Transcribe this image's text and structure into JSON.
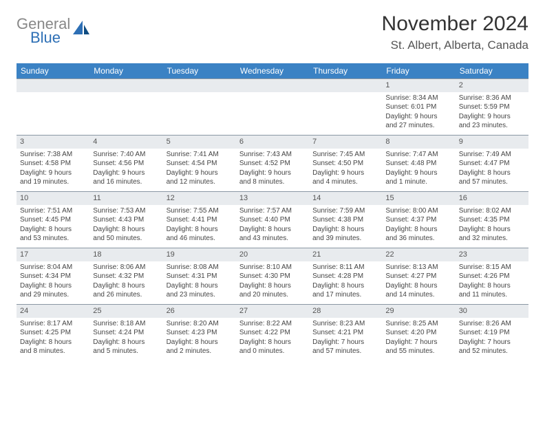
{
  "logo": {
    "text_gray": "General",
    "text_blue": "Blue"
  },
  "title": "November 2024",
  "location": "St. Albert, Alberta, Canada",
  "day_headers": [
    "Sunday",
    "Monday",
    "Tuesday",
    "Wednesday",
    "Thursday",
    "Friday",
    "Saturday"
  ],
  "colors": {
    "header_bg": "#3b82c4",
    "header_fg": "#ffffff",
    "daynum_bg": "#e8ebee",
    "border": "#8a97a3",
    "text": "#444444",
    "logo_gray": "#888888",
    "logo_blue": "#2d6fb5"
  },
  "weeks": [
    [
      {
        "blank": true
      },
      {
        "blank": true
      },
      {
        "blank": true
      },
      {
        "blank": true
      },
      {
        "blank": true
      },
      {
        "day": "1",
        "sunrise": "Sunrise: 8:34 AM",
        "sunset": "Sunset: 6:01 PM",
        "daylight1": "Daylight: 9 hours",
        "daylight2": "and 27 minutes."
      },
      {
        "day": "2",
        "sunrise": "Sunrise: 8:36 AM",
        "sunset": "Sunset: 5:59 PM",
        "daylight1": "Daylight: 9 hours",
        "daylight2": "and 23 minutes."
      }
    ],
    [
      {
        "day": "3",
        "sunrise": "Sunrise: 7:38 AM",
        "sunset": "Sunset: 4:58 PM",
        "daylight1": "Daylight: 9 hours",
        "daylight2": "and 19 minutes."
      },
      {
        "day": "4",
        "sunrise": "Sunrise: 7:40 AM",
        "sunset": "Sunset: 4:56 PM",
        "daylight1": "Daylight: 9 hours",
        "daylight2": "and 16 minutes."
      },
      {
        "day": "5",
        "sunrise": "Sunrise: 7:41 AM",
        "sunset": "Sunset: 4:54 PM",
        "daylight1": "Daylight: 9 hours",
        "daylight2": "and 12 minutes."
      },
      {
        "day": "6",
        "sunrise": "Sunrise: 7:43 AM",
        "sunset": "Sunset: 4:52 PM",
        "daylight1": "Daylight: 9 hours",
        "daylight2": "and 8 minutes."
      },
      {
        "day": "7",
        "sunrise": "Sunrise: 7:45 AM",
        "sunset": "Sunset: 4:50 PM",
        "daylight1": "Daylight: 9 hours",
        "daylight2": "and 4 minutes."
      },
      {
        "day": "8",
        "sunrise": "Sunrise: 7:47 AM",
        "sunset": "Sunset: 4:48 PM",
        "daylight1": "Daylight: 9 hours",
        "daylight2": "and 1 minute."
      },
      {
        "day": "9",
        "sunrise": "Sunrise: 7:49 AM",
        "sunset": "Sunset: 4:47 PM",
        "daylight1": "Daylight: 8 hours",
        "daylight2": "and 57 minutes."
      }
    ],
    [
      {
        "day": "10",
        "sunrise": "Sunrise: 7:51 AM",
        "sunset": "Sunset: 4:45 PM",
        "daylight1": "Daylight: 8 hours",
        "daylight2": "and 53 minutes."
      },
      {
        "day": "11",
        "sunrise": "Sunrise: 7:53 AM",
        "sunset": "Sunset: 4:43 PM",
        "daylight1": "Daylight: 8 hours",
        "daylight2": "and 50 minutes."
      },
      {
        "day": "12",
        "sunrise": "Sunrise: 7:55 AM",
        "sunset": "Sunset: 4:41 PM",
        "daylight1": "Daylight: 8 hours",
        "daylight2": "and 46 minutes."
      },
      {
        "day": "13",
        "sunrise": "Sunrise: 7:57 AM",
        "sunset": "Sunset: 4:40 PM",
        "daylight1": "Daylight: 8 hours",
        "daylight2": "and 43 minutes."
      },
      {
        "day": "14",
        "sunrise": "Sunrise: 7:59 AM",
        "sunset": "Sunset: 4:38 PM",
        "daylight1": "Daylight: 8 hours",
        "daylight2": "and 39 minutes."
      },
      {
        "day": "15",
        "sunrise": "Sunrise: 8:00 AM",
        "sunset": "Sunset: 4:37 PM",
        "daylight1": "Daylight: 8 hours",
        "daylight2": "and 36 minutes."
      },
      {
        "day": "16",
        "sunrise": "Sunrise: 8:02 AM",
        "sunset": "Sunset: 4:35 PM",
        "daylight1": "Daylight: 8 hours",
        "daylight2": "and 32 minutes."
      }
    ],
    [
      {
        "day": "17",
        "sunrise": "Sunrise: 8:04 AM",
        "sunset": "Sunset: 4:34 PM",
        "daylight1": "Daylight: 8 hours",
        "daylight2": "and 29 minutes."
      },
      {
        "day": "18",
        "sunrise": "Sunrise: 8:06 AM",
        "sunset": "Sunset: 4:32 PM",
        "daylight1": "Daylight: 8 hours",
        "daylight2": "and 26 minutes."
      },
      {
        "day": "19",
        "sunrise": "Sunrise: 8:08 AM",
        "sunset": "Sunset: 4:31 PM",
        "daylight1": "Daylight: 8 hours",
        "daylight2": "and 23 minutes."
      },
      {
        "day": "20",
        "sunrise": "Sunrise: 8:10 AM",
        "sunset": "Sunset: 4:30 PM",
        "daylight1": "Daylight: 8 hours",
        "daylight2": "and 20 minutes."
      },
      {
        "day": "21",
        "sunrise": "Sunrise: 8:11 AM",
        "sunset": "Sunset: 4:28 PM",
        "daylight1": "Daylight: 8 hours",
        "daylight2": "and 17 minutes."
      },
      {
        "day": "22",
        "sunrise": "Sunrise: 8:13 AM",
        "sunset": "Sunset: 4:27 PM",
        "daylight1": "Daylight: 8 hours",
        "daylight2": "and 14 minutes."
      },
      {
        "day": "23",
        "sunrise": "Sunrise: 8:15 AM",
        "sunset": "Sunset: 4:26 PM",
        "daylight1": "Daylight: 8 hours",
        "daylight2": "and 11 minutes."
      }
    ],
    [
      {
        "day": "24",
        "sunrise": "Sunrise: 8:17 AM",
        "sunset": "Sunset: 4:25 PM",
        "daylight1": "Daylight: 8 hours",
        "daylight2": "and 8 minutes."
      },
      {
        "day": "25",
        "sunrise": "Sunrise: 8:18 AM",
        "sunset": "Sunset: 4:24 PM",
        "daylight1": "Daylight: 8 hours",
        "daylight2": "and 5 minutes."
      },
      {
        "day": "26",
        "sunrise": "Sunrise: 8:20 AM",
        "sunset": "Sunset: 4:23 PM",
        "daylight1": "Daylight: 8 hours",
        "daylight2": "and 2 minutes."
      },
      {
        "day": "27",
        "sunrise": "Sunrise: 8:22 AM",
        "sunset": "Sunset: 4:22 PM",
        "daylight1": "Daylight: 8 hours",
        "daylight2": "and 0 minutes."
      },
      {
        "day": "28",
        "sunrise": "Sunrise: 8:23 AM",
        "sunset": "Sunset: 4:21 PM",
        "daylight1": "Daylight: 7 hours",
        "daylight2": "and 57 minutes."
      },
      {
        "day": "29",
        "sunrise": "Sunrise: 8:25 AM",
        "sunset": "Sunset: 4:20 PM",
        "daylight1": "Daylight: 7 hours",
        "daylight2": "and 55 minutes."
      },
      {
        "day": "30",
        "sunrise": "Sunrise: 8:26 AM",
        "sunset": "Sunset: 4:19 PM",
        "daylight1": "Daylight: 7 hours",
        "daylight2": "and 52 minutes."
      }
    ]
  ]
}
